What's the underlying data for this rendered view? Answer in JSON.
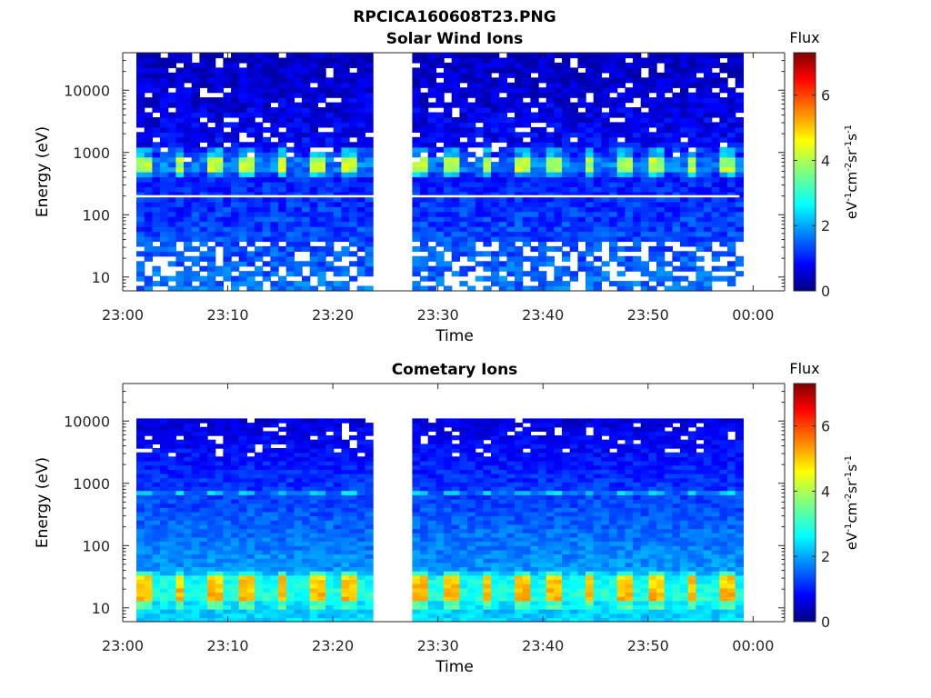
{
  "figure_title": "RPCICA160608T23.PNG",
  "colors": {
    "axis": "#262626",
    "background": "#ffffff",
    "colormap": [
      "#00007f",
      "#0000ff",
      "#007fff",
      "#00ffff",
      "#7fff7f",
      "#ffff00",
      "#ff7f00",
      "#ff0000",
      "#7f0000"
    ]
  },
  "chart_data": [
    {
      "type": "heatmap",
      "title": "Solar Wind Ions",
      "xlabel": "Time",
      "ylabel": "Energy (eV)",
      "x_range": [
        "23:00",
        "00:03"
      ],
      "x_ticks": [
        "23:00",
        "23:10",
        "23:20",
        "23:30",
        "23:40",
        "23:50",
        "00:00"
      ],
      "y_scale": "log",
      "y_range": [
        6,
        40000
      ],
      "y_ticks": [
        "10",
        "100",
        "1000",
        "10000"
      ],
      "data_gap": [
        "23:24",
        "23:27"
      ],
      "data_extent": [
        "23:01",
        "23:58"
      ],
      "colorbar": {
        "title": "Flux",
        "ticks": [
          "0",
          "2",
          "4",
          "6"
        ],
        "range": [
          0,
          7.3
        ]
      },
      "dominant_features": [
        {
          "energy_eV": 700,
          "flux_level": 4,
          "description_pattern": "periodic"
        }
      ]
    },
    {
      "type": "heatmap",
      "title": "Cometary Ions",
      "xlabel": "Time",
      "ylabel": "Energy (eV)",
      "x_range": [
        "23:00",
        "00:03"
      ],
      "x_ticks": [
        "23:00",
        "23:10",
        "23:20",
        "23:30",
        "23:40",
        "23:50",
        "00:00"
      ],
      "y_scale": "log",
      "y_range": [
        6,
        40000
      ],
      "y_ticks": [
        "10",
        "100",
        "1000",
        "10000"
      ],
      "data_gap": [
        "23:24",
        "23:27"
      ],
      "data_extent": [
        "23:01",
        "23:58"
      ],
      "colorbar": {
        "title": "Flux",
        "ticks": [
          "0",
          "2",
          "4",
          "6"
        ],
        "range": [
          0,
          7.3
        ]
      },
      "dominant_features": [
        {
          "energy_eV": 20,
          "flux_level": 5,
          "description_pattern": "periodic"
        }
      ]
    }
  ]
}
